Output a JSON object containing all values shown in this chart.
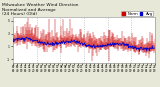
{
  "title": "Milwaukee Weather Wind Direction\nNormalized and Average\n(24 Hours) (Old)",
  "bg_color": "#e8e8d8",
  "plot_bg": "#ffffff",
  "bar_color": "#cc0000",
  "avg_color": "#0000cc",
  "ylim": [
    -1.5,
    5.5
  ],
  "ytick_vals": [
    -1,
    1,
    3,
    5
  ],
  "ytick_labels": [
    "-1",
    "1",
    "3",
    "5"
  ],
  "n_bars": 288,
  "seed": 7,
  "title_fontsize": 3.2,
  "tick_fontsize": 2.2,
  "legend_fontsize": 2.8,
  "grid_color": "#aaaaaa",
  "n_gridlines": 5
}
